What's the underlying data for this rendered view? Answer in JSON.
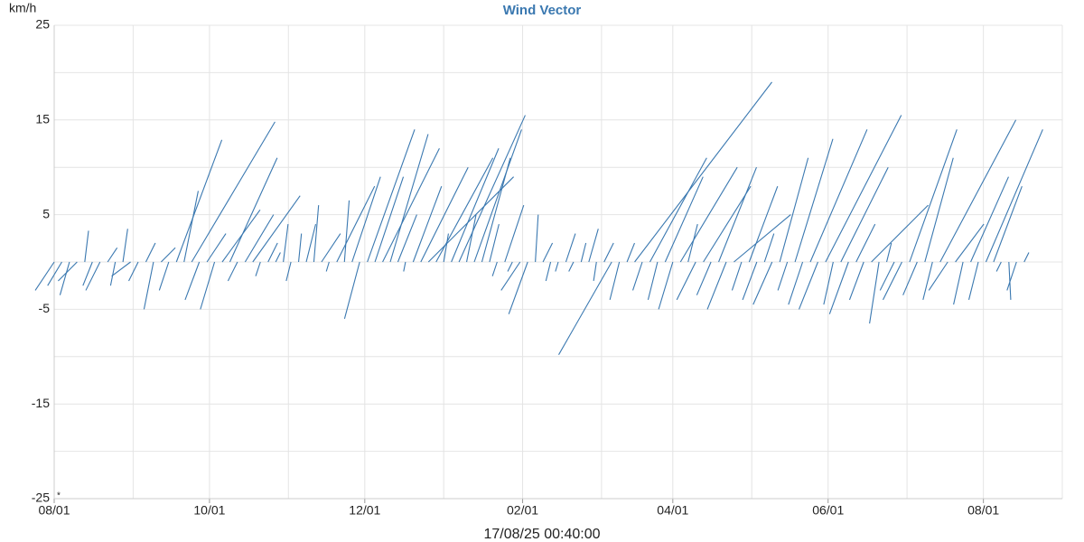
{
  "chart_data": {
    "type": "vector",
    "title": "Wind Vector",
    "y_label": "km/h",
    "footer": "17/08/25 00:40:00",
    "note": "*",
    "color": "#3a78b0",
    "grid": true,
    "xlim": [
      0,
      396
    ],
    "xticks": [
      {
        "value": 0,
        "label": "08/01"
      },
      {
        "value": 61,
        "label": "10/01"
      },
      {
        "value": 122,
        "label": "12/01"
      },
      {
        "value": 184,
        "label": "02/01"
      },
      {
        "value": 243,
        "label": "04/01"
      },
      {
        "value": 304,
        "label": "06/01"
      },
      {
        "value": 365,
        "label": "08/01"
      }
    ],
    "xgrid": [
      31,
      92,
      153,
      215,
      274,
      335,
      396
    ],
    "ylim": [
      -25,
      25
    ],
    "yticks": [
      25,
      15,
      5,
      -5,
      -15,
      -25
    ],
    "ygrid": [
      20,
      10,
      0,
      -10,
      -20
    ],
    "x": [
      0,
      3,
      6,
      9,
      12,
      15,
      18,
      21,
      24,
      27,
      30,
      33,
      36,
      39,
      42,
      45,
      48,
      51,
      54,
      57,
      60,
      63,
      66,
      69,
      72,
      75,
      78,
      81,
      84,
      87,
      90,
      93,
      96,
      99,
      102,
      105,
      108,
      111,
      114,
      117,
      120,
      123,
      126,
      129,
      132,
      135,
      138,
      141,
      144,
      147,
      150,
      153,
      156,
      159,
      162,
      165,
      168,
      171,
      174,
      177,
      180,
      183,
      186,
      189,
      192,
      195,
      198,
      201,
      204,
      207,
      210,
      213,
      216,
      219,
      222,
      225,
      228,
      231,
      234,
      237,
      240,
      243,
      246,
      249,
      252,
      255,
      258,
      261,
      264,
      267,
      270,
      273,
      276,
      279,
      282,
      285,
      288,
      291,
      294,
      297,
      300,
      303,
      306,
      309,
      312,
      315,
      318,
      321,
      324,
      327,
      330,
      333,
      336,
      339,
      342,
      345,
      348,
      351,
      354,
      357,
      360,
      363,
      366,
      369,
      372,
      375,
      378,
      381
    ],
    "u": [
      -2,
      -1.5,
      -1,
      -2,
      0.4,
      -1,
      -1.5,
      1,
      -0.5,
      0.5,
      -2,
      -1,
      1,
      -1,
      1.5,
      -1,
      4.8,
      1.5,
      8.8,
      -1.5,
      2,
      -1.5,
      4,
      5,
      -1,
      3,
      5,
      -0.5,
      1,
      0.5,
      0.5,
      -0.5,
      0.3,
      1,
      0.5,
      2,
      -0.3,
      4,
      0.5,
      3,
      -1.6,
      5,
      3,
      6,
      4,
      2,
      -0.2,
      3,
      5,
      9,
      6,
      0.5,
      5,
      7,
      1,
      5,
      3,
      1,
      -0.5,
      2,
      -0.5,
      -2,
      -2,
      0.3,
      1,
      -0.5,
      -0.3,
      1,
      -0.5,
      0.5,
      1,
      -0.3,
      1,
      -5.6,
      -1,
      0.8,
      14.5,
      -1,
      6,
      -1,
      4,
      -1.5,
      6,
      1,
      -2,
      5,
      -1.5,
      4,
      -2,
      6,
      -1,
      3,
      -1.5,
      1,
      -2,
      3,
      -1,
      4,
      -1.5,
      6,
      -2,
      8,
      -1,
      5,
      -2,
      2,
      -1.5,
      6,
      -1,
      0.5,
      -1.5,
      -2,
      5,
      -1.5,
      3,
      -1,
      8,
      -2,
      3,
      -1,
      4,
      -1,
      6,
      3,
      -0.5,
      0.2,
      -1,
      0.5
    ],
    "v": [
      -3,
      -2.5,
      -3.5,
      -2,
      3.3,
      -2.5,
      -3,
      1.5,
      -2.5,
      3.5,
      -1.5,
      -2,
      2,
      -5,
      1.5,
      -3,
      12.9,
      7.5,
      14.8,
      -4,
      3,
      -5,
      5.5,
      11,
      -2,
      5,
      7,
      -1.5,
      2,
      1,
      4,
      -2,
      3,
      4,
      6,
      3,
      -1,
      8,
      6.5,
      9,
      -6,
      14,
      9,
      12,
      13.5,
      5,
      -1,
      8,
      10,
      9,
      11,
      3,
      12,
      15.5,
      5,
      14,
      11,
      4,
      -1.5,
      6,
      -1,
      -3,
      -5.5,
      5,
      2,
      -2,
      -1,
      3,
      -1,
      2,
      3.5,
      -2,
      2,
      -9.8,
      -4,
      2,
      19,
      -3,
      11,
      -4,
      9,
      -5,
      10,
      4,
      -4,
      8,
      -3.5,
      10,
      -5,
      5,
      -3,
      8,
      -4,
      3,
      -4.5,
      11,
      -3,
      13,
      -4.5,
      14,
      -5,
      15.5,
      -4.5,
      10,
      -5.5,
      4,
      -4,
      6,
      -6.5,
      2,
      -3,
      -4,
      14,
      -3.5,
      11,
      -4,
      15,
      -3,
      4,
      -4.5,
      9,
      -4,
      14,
      8,
      -1,
      -4,
      -3,
      1
    ]
  }
}
